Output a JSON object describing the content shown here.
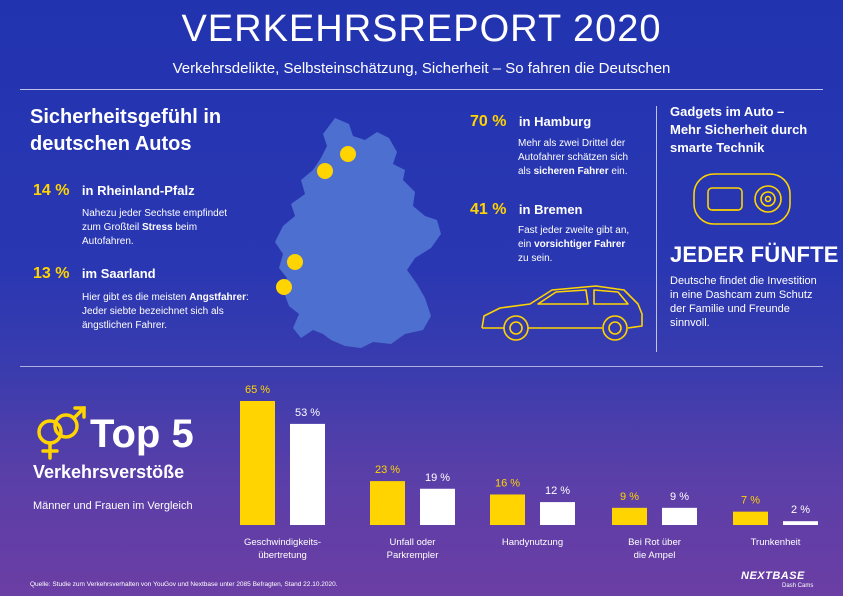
{
  "header": {
    "title": "VERKEHRSREPORT 2020",
    "subtitle": "Verkehrsdelikte, Selbsteinschätzung, Sicherheit – So fahren die Deutschen"
  },
  "safety": {
    "title_line1": "Sicherheitsgefühl in",
    "title_line2": "deutschen Autos",
    "stats": [
      {
        "pct": "14 %",
        "region": "in Rheinland-Pfalz",
        "lines": [
          "Nahezu jeder Sechste empfindet",
          "zum Großteil ",
          "Stress",
          " beim",
          "Autofahren."
        ]
      },
      {
        "pct": "13 %",
        "region": "im Saarland",
        "lines": [
          "Hier gibt es die meisten ",
          "Angstfahrer",
          ":",
          "Jeder siebte bezeichnet sich als",
          "ängstlichen Fahrer."
        ]
      },
      {
        "pct": "70 %",
        "region": "in Hamburg",
        "lines": [
          "Mehr als zwei Drittel der",
          "Autofahrer schätzen sich",
          "als ",
          "sicheren Fahrer",
          " ein."
        ]
      },
      {
        "pct": "41 %",
        "region": "in Bremen",
        "lines": [
          "Fast jeder zweite gibt an,",
          "ein ",
          "vorsichtiger Fahrer",
          "zu sein."
        ]
      }
    ]
  },
  "gadgets": {
    "title_line1": "Gadgets im Auto –",
    "title_line2": "Mehr Sicherheit durch",
    "title_line3": "smarte Technik",
    "headline": "JEDER FÜNFTE",
    "text_line1": "Deutsche findet die Investition",
    "text_line2": "in eine Dashcam zum Schutz",
    "text_line3": "der Familie und Freunde",
    "text_line4": "sinnvoll."
  },
  "top5": {
    "title": "Top 5",
    "subtitle": "Verkehrsverstöße",
    "caption": "Männer und Frauen im Vergleich"
  },
  "chart_data": {
    "type": "bar",
    "categories": [
      [
        "Geschwindigkeits-",
        "übertretung"
      ],
      [
        "Unfall oder",
        "Parkrempler"
      ],
      [
        "Handynutzung"
      ],
      [
        "Bei Rot über",
        "die Ampel"
      ],
      [
        "Trunkenheit"
      ]
    ],
    "series": [
      {
        "values": [
          65,
          23,
          16,
          9,
          7
        ],
        "labels": [
          "65 %",
          "23 %",
          "16 %",
          "9 %",
          "7 %"
        ],
        "color": "#ffd400"
      },
      {
        "values": [
          53,
          19,
          12,
          9,
          2
        ],
        "labels": [
          "53 %",
          "19 %",
          "12 %",
          "9 %",
          "2 %"
        ],
        "color": "#ffffff"
      }
    ],
    "ylim": [
      0,
      65
    ]
  },
  "footer": {
    "source": "Quelle: Studie zum Verkehrsverhalten von YouGov und Nextbase unter 2085 Befragten, Stand 22.10.2020.",
    "brand": "NEXTBASE",
    "brand_sub": "Dash Cams"
  },
  "colors": {
    "accent": "#ffd400",
    "map": "#4d6fd0",
    "background_top": "#2233b0",
    "background_bottom": "#6b3ea4"
  }
}
